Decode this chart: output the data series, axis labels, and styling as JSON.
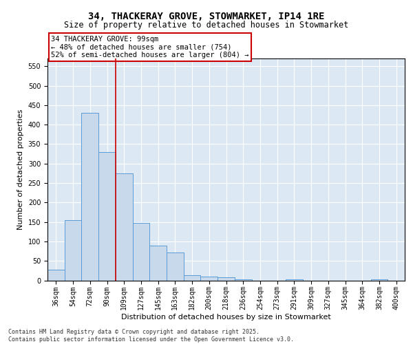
{
  "title": "34, THACKERAY GROVE, STOWMARKET, IP14 1RE",
  "subtitle": "Size of property relative to detached houses in Stowmarket",
  "xlabel": "Distribution of detached houses by size in Stowmarket",
  "ylabel": "Number of detached properties",
  "categories": [
    "36sqm",
    "54sqm",
    "72sqm",
    "90sqm",
    "109sqm",
    "127sqm",
    "145sqm",
    "163sqm",
    "182sqm",
    "200sqm",
    "218sqm",
    "236sqm",
    "254sqm",
    "273sqm",
    "291sqm",
    "309sqm",
    "327sqm",
    "345sqm",
    "364sqm",
    "382sqm",
    "400sqm"
  ],
  "values": [
    27,
    155,
    430,
    330,
    275,
    148,
    90,
    72,
    13,
    10,
    8,
    3,
    0,
    0,
    2,
    0,
    0,
    0,
    0,
    3,
    0
  ],
  "bar_color": "#c9d9ec",
  "bar_edge_color": "#5b9bd5",
  "vline_x": 3.5,
  "vline_color": "#cc0000",
  "annotation_text": "34 THACKERAY GROVE: 99sqm\n← 48% of detached houses are smaller (754)\n52% of semi-detached houses are larger (804) →",
  "annotation_box_color": "#ffffff",
  "annotation_box_edge": "#cc0000",
  "ylim": [
    0,
    570
  ],
  "yticks": [
    0,
    50,
    100,
    150,
    200,
    250,
    300,
    350,
    400,
    450,
    500,
    550
  ],
  "background_color": "#dce9f5",
  "footer": "Contains HM Land Registry data © Crown copyright and database right 2025.\nContains public sector information licensed under the Open Government Licence v3.0.",
  "title_fontsize": 10,
  "subtitle_fontsize": 8.5,
  "tick_fontsize": 7,
  "xlabel_fontsize": 8,
  "ylabel_fontsize": 8,
  "annotation_fontsize": 7.5,
  "footer_fontsize": 6
}
